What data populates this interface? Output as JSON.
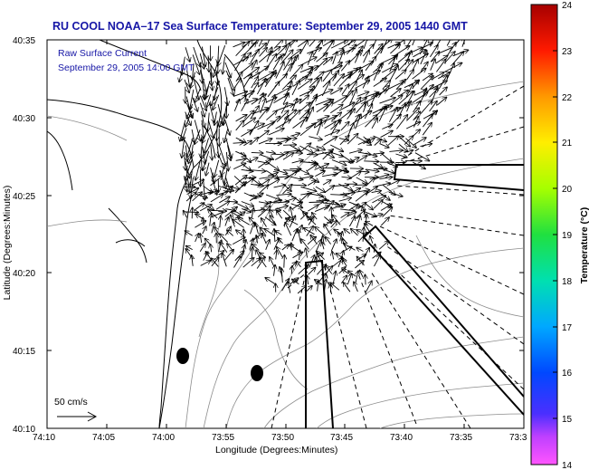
{
  "title": "RU COOL  NOAA–17  Sea Surface Temperature:  September 29, 2005 1440 GMT",
  "current_label": "Raw Surface Current",
  "current_time": "September 29, 2005 14:00 GMT",
  "scale_label": "50 cm/s",
  "xlabel": "Longitude (Degrees:Minutes)",
  "ylabel": "Latitude (Degrees:Minutes)",
  "colorbar_label": "Temperature (°C)",
  "x_ticks": [
    "74:10",
    "74:05",
    "74:00",
    "73:55",
    "73:50",
    "73:45",
    "73:40",
    "73:35",
    "73:3"
  ],
  "y_ticks": [
    "40:35",
    "40:30",
    "40:25",
    "40:20",
    "40:15",
    "40:10"
  ],
  "colorbar_ticks": [
    "24",
    "23",
    "22",
    "21",
    "20",
    "19",
    "18",
    "17",
    "16",
    "15",
    "14"
  ],
  "colors": {
    "title": "#1616a6",
    "land_outline": "#000000",
    "bathymetry": "#8c8c8c"
  },
  "chart_data": {
    "type": "map",
    "extent": {
      "lon_min": -74.1667,
      "lon_max": -73.5,
      "lat_min": 40.1667,
      "lat_max": 40.5833
    },
    "colorbar_range": [
      14,
      24
    ],
    "markers": [
      {
        "lon": -73.98,
        "lat": 40.245
      },
      {
        "lon": -73.87,
        "lat": 40.228
      }
    ]
  }
}
